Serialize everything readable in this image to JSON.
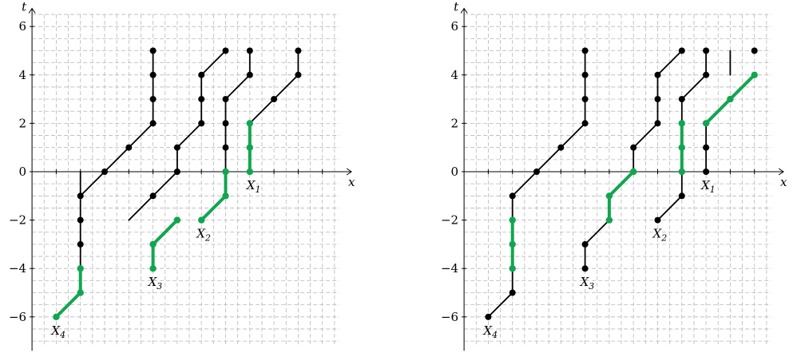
{
  "panels": [
    {
      "id": "left",
      "x_label": "x",
      "y_label": "t",
      "y_ticks": [
        {
          "v": 6,
          "label": "6"
        },
        {
          "v": 4,
          "label": "4"
        },
        {
          "v": 2,
          "label": "2"
        },
        {
          "v": 0,
          "label": "0"
        },
        {
          "v": -2,
          "label": "−2"
        },
        {
          "v": -4,
          "label": "−4"
        },
        {
          "v": -6,
          "label": "−6"
        }
      ],
      "black_paths": [
        [
          [
            -1,
            -1
          ],
          [
            -1,
            0.0001
          ]
        ],
        [
          [
            -1,
            -1
          ],
          [
            -1,
            -4
          ]
        ],
        [
          [
            -1,
            -1
          ],
          [
            0,
            0
          ],
          [
            1,
            1
          ],
          [
            2,
            2
          ],
          [
            2,
            5
          ]
        ],
        [
          [
            1,
            -2
          ],
          [
            2,
            -1
          ],
          [
            3,
            0
          ],
          [
            3,
            1
          ],
          [
            4,
            2
          ],
          [
            4,
            4
          ],
          [
            5,
            5
          ]
        ],
        [
          [
            5,
            -1
          ],
          [
            5,
            3
          ],
          [
            6,
            4
          ],
          [
            6,
            5
          ]
        ],
        [
          [
            6,
            2
          ],
          [
            7,
            3
          ],
          [
            8,
            4
          ],
          [
            8,
            5
          ]
        ]
      ],
      "green_paths": [
        [
          [
            -2,
            -6
          ],
          [
            -1,
            -5
          ],
          [
            -1,
            -4
          ]
        ],
        [
          [
            2,
            -4
          ],
          [
            2,
            -3
          ],
          [
            3,
            -2
          ]
        ],
        [
          [
            4,
            -2
          ],
          [
            5,
            -1
          ],
          [
            5,
            0
          ]
        ],
        [
          [
            6,
            0
          ],
          [
            6,
            2
          ]
        ]
      ],
      "black_points": [
        [
          -1,
          -1
        ],
        [
          -1,
          -2
        ],
        [
          -1,
          -3
        ],
        [
          0,
          0
        ],
        [
          1,
          1
        ],
        [
          2,
          2
        ],
        [
          2,
          3
        ],
        [
          2,
          4
        ],
        [
          2,
          5
        ],
        [
          2,
          -1
        ],
        [
          3,
          0
        ],
        [
          3,
          1
        ],
        [
          4,
          2
        ],
        [
          4,
          3
        ],
        [
          4,
          4
        ],
        [
          5,
          5
        ],
        [
          5,
          1
        ],
        [
          5,
          2
        ],
        [
          5,
          3
        ],
        [
          6,
          4
        ],
        [
          6,
          5
        ],
        [
          7,
          3
        ],
        [
          8,
          4
        ],
        [
          8,
          5
        ]
      ],
      "green_points": [
        [
          -2,
          -6
        ],
        [
          -1,
          -5
        ],
        [
          -1,
          -4
        ],
        [
          2,
          -4
        ],
        [
          2,
          -3
        ],
        [
          3,
          -2
        ],
        [
          4,
          -2
        ],
        [
          5,
          -1
        ],
        [
          5,
          0
        ],
        [
          6,
          0
        ],
        [
          6,
          1
        ],
        [
          6,
          2
        ]
      ],
      "labels": [
        {
          "x": 6,
          "y": 0,
          "text": "X",
          "sub": "1",
          "dx": -4,
          "dy": 22
        },
        {
          "x": 4,
          "y": -2,
          "text": "X",
          "sub": "2",
          "dx": -6,
          "dy": 22
        },
        {
          "x": 2,
          "y": -4,
          "text": "X",
          "sub": "3",
          "dx": -6,
          "dy": 22
        },
        {
          "x": -2,
          "y": -6,
          "text": "X",
          "sub": "4",
          "dx": -6,
          "dy": 22
        }
      ]
    },
    {
      "id": "right",
      "x_label": "x",
      "y_label": "t",
      "y_ticks": [
        {
          "v": 6,
          "label": "6"
        },
        {
          "v": 4,
          "label": "4"
        },
        {
          "v": 2,
          "label": "2"
        },
        {
          "v": 0,
          "label": "0"
        },
        {
          "v": -2,
          "label": "−2"
        },
        {
          "v": -4,
          "label": "−4"
        },
        {
          "v": -6,
          "label": "−6"
        }
      ],
      "black_paths": [
        [
          [
            -2,
            -6
          ],
          [
            -1,
            -5
          ],
          [
            -1,
            -4
          ]
        ],
        [
          [
            -1,
            -1
          ],
          [
            -1,
            -2
          ]
        ],
        [
          [
            -1,
            -1
          ],
          [
            0,
            0
          ],
          [
            1,
            1
          ],
          [
            2,
            2
          ],
          [
            2,
            5
          ]
        ],
        [
          [
            2,
            -4
          ],
          [
            2,
            -3
          ],
          [
            3,
            -2
          ]
        ],
        [
          [
            3,
            -1
          ],
          [
            4,
            0
          ]
        ],
        [
          [
            4,
            0
          ],
          [
            4,
            1
          ],
          [
            5,
            2
          ],
          [
            5,
            4
          ],
          [
            6,
            5
          ]
        ],
        [
          [
            5,
            -2
          ],
          [
            6,
            -1
          ],
          [
            6,
            0
          ]
        ],
        [
          [
            6,
            2
          ],
          [
            6,
            3
          ],
          [
            7,
            4
          ],
          [
            7,
            5
          ]
        ],
        [
          [
            7,
            0
          ],
          [
            7,
            2
          ]
        ],
        [
          [
            8,
            4
          ],
          [
            8,
            5
          ]
        ]
      ],
      "green_paths": [
        [
          [
            -1,
            -2
          ],
          [
            -1,
            -4
          ]
        ],
        [
          [
            3,
            -1
          ],
          [
            3,
            -2
          ]
        ],
        [
          [
            3,
            -1
          ],
          [
            4,
            0
          ]
        ],
        [
          [
            6,
            0
          ],
          [
            6,
            2
          ]
        ],
        [
          [
            7,
            2
          ],
          [
            8,
            3
          ],
          [
            9,
            4
          ]
        ]
      ],
      "black_points": [
        [
          -2,
          -6
        ],
        [
          -1,
          -5
        ],
        [
          -1,
          -1
        ],
        [
          0,
          0
        ],
        [
          1,
          1
        ],
        [
          2,
          2
        ],
        [
          2,
          3
        ],
        [
          2,
          4
        ],
        [
          2,
          5
        ],
        [
          2,
          -4
        ],
        [
          2,
          -3
        ],
        [
          4,
          1
        ],
        [
          5,
          2
        ],
        [
          5,
          3
        ],
        [
          5,
          4
        ],
        [
          6,
          5
        ],
        [
          5,
          -2
        ],
        [
          6,
          -1
        ],
        [
          6,
          3
        ],
        [
          7,
          4
        ],
        [
          7,
          5
        ],
        [
          7,
          0
        ],
        [
          7,
          1
        ],
        [
          9,
          5
        ]
      ],
      "green_points": [
        [
          -1,
          -2
        ],
        [
          -1,
          -3
        ],
        [
          -1,
          -4
        ],
        [
          3,
          -2
        ],
        [
          3,
          -1
        ],
        [
          4,
          0
        ],
        [
          6,
          0
        ],
        [
          6,
          1
        ],
        [
          6,
          2
        ],
        [
          7,
          2
        ],
        [
          8,
          3
        ],
        [
          9,
          4
        ]
      ],
      "labels": [
        {
          "x": 7,
          "y": 0,
          "text": "X",
          "sub": "1",
          "dx": -6,
          "dy": 22
        },
        {
          "x": 5,
          "y": -2,
          "text": "X",
          "sub": "2",
          "dx": -6,
          "dy": 22
        },
        {
          "x": 2,
          "y": -4,
          "text": "X",
          "sub": "3",
          "dx": -6,
          "dy": 22
        },
        {
          "x": -2,
          "y": -6,
          "text": "X",
          "sub": "4",
          "dx": -6,
          "dy": 22
        }
      ]
    }
  ]
}
